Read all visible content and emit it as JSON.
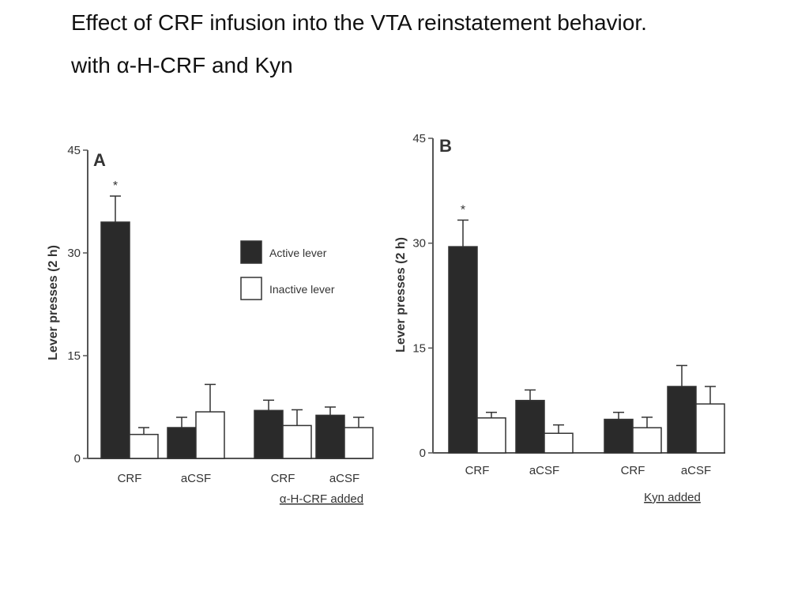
{
  "title": {
    "line1": "Effect of CRF infusion into the VTA reinstatement behavior.",
    "line2_prefix": "with ",
    "line2_symbol": "α",
    "line2_suffix": "-H-CRF and Kyn"
  },
  "colors": {
    "active": "#2a2a2a",
    "inactive": "#ffffff",
    "axis": "#555555"
  },
  "chart_data": [
    {
      "type": "bar",
      "panel_label": "A",
      "ylabel": "Lever presses (2 h)",
      "ylim": [
        0,
        45
      ],
      "yticks": [
        "0",
        "15",
        "30",
        "45"
      ],
      "categories": [
        "CRF",
        "aCSF",
        "CRF",
        "aCSF"
      ],
      "group_caption": "α-H-CRF added",
      "caption_covers": [
        2,
        3
      ],
      "series": [
        {
          "name": "Active lever",
          "values": [
            34.5,
            4.5,
            7,
            6.3
          ],
          "errors": [
            3.8,
            1.5,
            1.5,
            1.2
          ]
        },
        {
          "name": "Inactive lever",
          "values": [
            3.5,
            6.8,
            4.8,
            4.5
          ],
          "errors": [
            1.0,
            4.0,
            2.3,
            1.5
          ]
        }
      ],
      "annotations": [
        {
          "category": 0,
          "series": 0,
          "text": "*"
        }
      ],
      "legend": "top-right"
    },
    {
      "type": "bar",
      "panel_label": "B",
      "ylabel": "Lever presses (2 h)",
      "ylim": [
        0,
        45
      ],
      "yticks": [
        "0",
        "15",
        "30",
        "45"
      ],
      "categories": [
        "CRF",
        "aCSF",
        "CRF",
        "aCSF"
      ],
      "group_caption": "Kyn added",
      "caption_covers": [
        2,
        3
      ],
      "series": [
        {
          "name": "Active lever",
          "values": [
            29.5,
            7.5,
            4.8,
            9.5
          ],
          "errors": [
            3.8,
            1.5,
            1.0,
            3.0
          ]
        },
        {
          "name": "Inactive lever",
          "values": [
            5,
            2.8,
            3.6,
            7
          ],
          "errors": [
            0.8,
            1.2,
            1.5,
            2.5
          ]
        }
      ],
      "annotations": [
        {
          "category": 0,
          "series": 0,
          "text": "*"
        }
      ]
    }
  ]
}
